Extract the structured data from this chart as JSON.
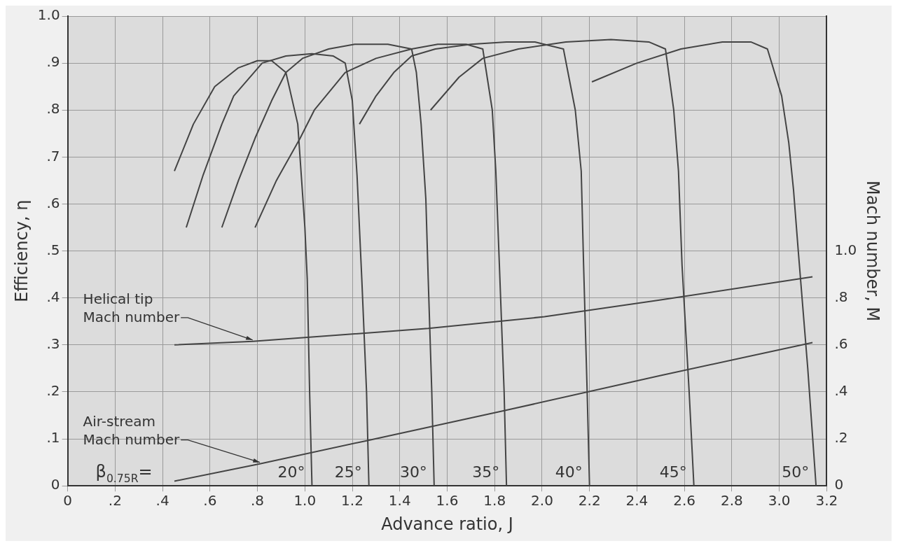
{
  "chart_data": {
    "type": "line",
    "xlabel": "Advance ratio, J",
    "ylabel": "Efficiency, η",
    "y2label": "Mach number, M",
    "xlim": [
      0,
      3.2
    ],
    "xticks": [
      0,
      {
        "value": 0.2,
        "label": ".2"
      },
      {
        "value": 0.4,
        "label": ".4"
      },
      {
        "value": 0.6,
        "label": ".6"
      },
      {
        "value": 0.8,
        "label": ".8"
      },
      {
        "value": 1,
        "label": "1.0"
      },
      1.2,
      1.4,
      1.6,
      1.8,
      {
        "value": 2,
        "label": "2.0"
      },
      2.2,
      2.4,
      2.6,
      2.8,
      {
        "value": 3,
        "label": "3.0"
      },
      3.2
    ],
    "ylim": [
      0,
      1
    ],
    "yticks": [
      0,
      {
        "value": 0.1,
        "label": ".1"
      },
      {
        "value": 0.2,
        "label": ".2"
      },
      {
        "value": 0.3,
        "label": ".3"
      },
      {
        "value": 0.4,
        "label": ".4"
      },
      {
        "value": 0.5,
        "label": ".5"
      },
      {
        "value": 0.6,
        "label": ".6"
      },
      {
        "value": 0.7,
        "label": ".7"
      },
      {
        "value": 0.8,
        "label": ".8"
      },
      {
        "value": 0.9,
        "label": ".9"
      },
      {
        "value": 1,
        "label": "1.0"
      }
    ],
    "y2lim": [
      0,
      2
    ],
    "y2ticks": [
      0,
      {
        "value": 0.2,
        "label": ".2"
      },
      {
        "value": 0.4,
        "label": ".4"
      },
      {
        "value": 0.6,
        "label": ".6"
      },
      {
        "value": 0.8,
        "label": ".8"
      },
      {
        "value": 1,
        "label": "1.0"
      }
    ],
    "grid": true,
    "legend": false,
    "series": [
      {
        "name": "20°",
        "color": "#444444",
        "x": [
          0.45,
          0.53,
          0.62,
          0.72,
          0.8,
          0.86,
          0.92,
          0.97,
          1.0,
          1.01,
          1.02,
          1.03
        ],
        "values": [
          0.67,
          0.77,
          0.85,
          0.89,
          0.905,
          0.905,
          0.88,
          0.77,
          0.55,
          0.44,
          0.2,
          0
        ]
      },
      {
        "name": "25°",
        "color": "#444444",
        "x": [
          0.5,
          0.57,
          0.65,
          0.7,
          0.82,
          0.92,
          1.03,
          1.12,
          1.17,
          1.2,
          1.22,
          1.24,
          1.26,
          1.27
        ],
        "values": [
          0.55,
          0.66,
          0.77,
          0.83,
          0.9,
          0.915,
          0.92,
          0.915,
          0.9,
          0.82,
          0.66,
          0.44,
          0.2,
          0
        ]
      },
      {
        "name": "30°",
        "color": "#444444",
        "x": [
          0.65,
          0.72,
          0.79,
          0.86,
          0.92,
          0.99,
          1.1,
          1.21,
          1.35,
          1.45,
          1.47,
          1.49,
          1.51,
          1.52,
          1.535,
          1.545
        ],
        "values": [
          0.55,
          0.65,
          0.74,
          0.82,
          0.88,
          0.91,
          0.93,
          0.94,
          0.94,
          0.93,
          0.88,
          0.77,
          0.61,
          0.44,
          0.2,
          0
        ]
      },
      {
        "name": "35°",
        "color": "#444444",
        "x": [
          0.79,
          0.88,
          0.98,
          1.04,
          1.17,
          1.3,
          1.45,
          1.56,
          1.68,
          1.75,
          1.79,
          1.805,
          1.82,
          1.84,
          1.85
        ],
        "values": [
          0.55,
          0.65,
          0.74,
          0.8,
          0.88,
          0.91,
          0.93,
          0.94,
          0.94,
          0.93,
          0.8,
          0.67,
          0.47,
          0.2,
          0
        ]
      },
      {
        "name": "40°",
        "color": "#444444",
        "x": [
          1.23,
          1.3,
          1.375,
          1.45,
          1.55,
          1.7,
          1.85,
          1.97,
          2.09,
          2.14,
          2.165,
          2.175,
          2.19,
          2.2
        ],
        "values": [
          0.77,
          0.83,
          0.88,
          0.915,
          0.93,
          0.94,
          0.945,
          0.945,
          0.93,
          0.8,
          0.67,
          0.47,
          0.2,
          0
        ]
      },
      {
        "name": "45°",
        "color": "#444444",
        "x": [
          1.53,
          1.65,
          1.75,
          1.9,
          2.1,
          2.29,
          2.45,
          2.52,
          2.555,
          2.575,
          2.59,
          2.62,
          2.64
        ],
        "values": [
          0.8,
          0.87,
          0.91,
          0.93,
          0.945,
          0.95,
          0.945,
          0.93,
          0.8,
          0.67,
          0.47,
          0.2,
          0
        ]
      },
      {
        "name": "50°",
        "color": "#444444",
        "x": [
          2.21,
          2.4,
          2.585,
          2.76,
          2.88,
          2.95,
          3.01,
          3.04,
          3.06,
          3.08,
          3.12,
          3.155
        ],
        "values": [
          0.86,
          0.9,
          0.93,
          0.945,
          0.945,
          0.93,
          0.83,
          0.73,
          0.63,
          0.5,
          0.25,
          0
        ]
      },
      {
        "name": "Helical tip Mach number",
        "color": "#444444",
        "axis": "y2",
        "x": [
          0.45,
          0.78,
          1.52,
          2.01,
          2.49,
          3.14
        ],
        "values": [
          0.6,
          0.615,
          0.67,
          0.72,
          0.79,
          0.89
        ]
      },
      {
        "name": "Air-stream Mach number",
        "color": "#444444",
        "axis": "y2",
        "x": [
          0.45,
          0.81,
          1.25,
          1.84,
          2.5,
          3.14
        ],
        "values": [
          0.02,
          0.094,
          0.19,
          0.32,
          0.47,
          0.61
        ]
      }
    ],
    "annotations": [
      "β$_{0.75R}$="
    ]
  }
}
